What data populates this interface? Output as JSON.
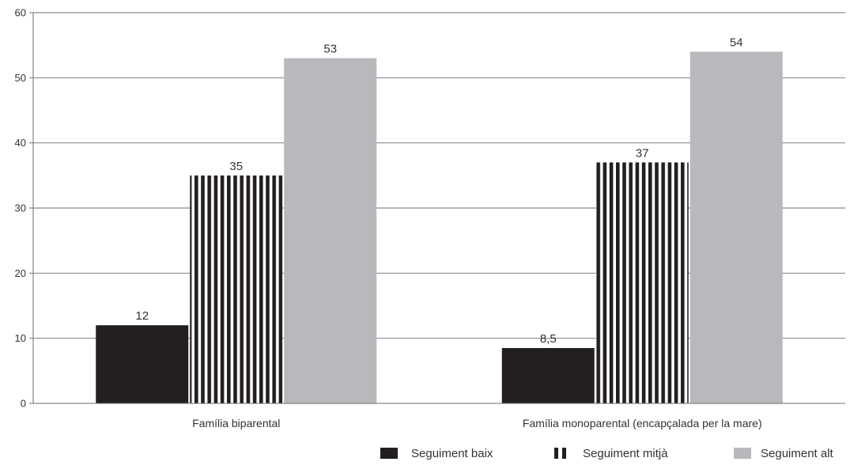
{
  "chart_data": {
    "type": "bar",
    "categories": [
      "Família biparental",
      "Família monoparental (encapçalada per la mare)"
    ],
    "series": [
      {
        "name": "Seguiment baix",
        "values": [
          12,
          8.5
        ],
        "labels": [
          "12",
          "8,5"
        ],
        "pattern": "solid",
        "color": "#231f20"
      },
      {
        "name": "Seguiment mitjà",
        "values": [
          35,
          37
        ],
        "labels": [
          "35",
          "37"
        ],
        "pattern": "vertical-stripes",
        "color": "#231f20"
      },
      {
        "name": "Seguiment alt",
        "values": [
          53,
          54
        ],
        "labels": [
          "53",
          "54"
        ],
        "pattern": "solid",
        "color": "#b8b9bc"
      }
    ],
    "title": "",
    "xlabel": "",
    "ylabel": "",
    "ylim": [
      0,
      60
    ],
    "yticks": [
      0,
      10,
      20,
      30,
      40,
      50,
      60
    ],
    "grid": true,
    "legend_position": "bottom-right"
  }
}
